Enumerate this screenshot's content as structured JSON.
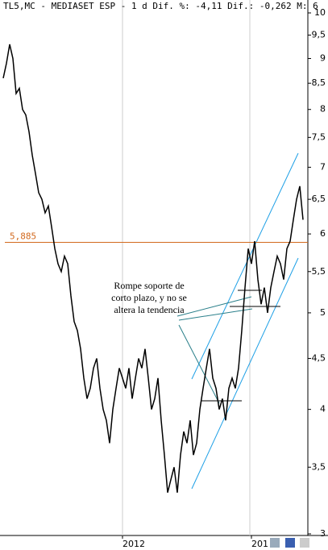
{
  "chart_data": {
    "type": "line",
    "title": "TL5,MC - MEDIASET ESP - 1 d Dif. %: -4,11 Dif.: -0,262 M: 6",
    "log_y": true,
    "ylim": [
      3,
      10
    ],
    "yticks": [
      3,
      {
        "value": 3.5,
        "label": "3,5"
      },
      4,
      {
        "value": 4.5,
        "label": "4,5"
      },
      5,
      {
        "value": 5.5,
        "label": "5,5"
      },
      6,
      {
        "value": 6.5,
        "label": "6,5"
      },
      7,
      {
        "value": 7.5,
        "label": "7,5"
      },
      8,
      {
        "value": 8.5,
        "label": "8,5"
      },
      9,
      {
        "value": 9.5,
        "label": "9,5"
      },
      10
    ],
    "hline": {
      "value": 5.885,
      "label": "5,885",
      "color": "#d2691e"
    },
    "annotation": [
      "Rompe soporte de",
      "corto plazo, y no se",
      "altera la tendencia"
    ],
    "categories": [
      null,
      null,
      null,
      null,
      null,
      null,
      null,
      null,
      null,
      null,
      null,
      null,
      null,
      null,
      null,
      null,
      null,
      null,
      null,
      null,
      null,
      null,
      null,
      null,
      null,
      null,
      null,
      null,
      null,
      null,
      null,
      null,
      null,
      null,
      null,
      null,
      null,
      "2012",
      null,
      null,
      null,
      null,
      null,
      null,
      null,
      null,
      null,
      null,
      null,
      null,
      null,
      null,
      null,
      null,
      null,
      null,
      null,
      null,
      null,
      null,
      null,
      null,
      null,
      null,
      null,
      null,
      null,
      null,
      null,
      null,
      null,
      null,
      null,
      null,
      null,
      null,
      null,
      "201",
      null,
      null,
      null,
      null,
      null,
      null,
      null,
      null,
      null,
      null,
      null,
      null,
      null,
      null,
      null,
      null
    ],
    "series": [
      {
        "color": "#000000",
        "values": [
          8.6,
          8.9,
          9.3,
          9.0,
          8.3,
          8.4,
          8.0,
          7.9,
          7.6,
          7.2,
          6.9,
          6.6,
          6.5,
          6.3,
          6.4,
          6.1,
          5.8,
          5.6,
          5.5,
          5.7,
          5.6,
          5.2,
          4.9,
          4.8,
          4.6,
          4.3,
          4.1,
          4.2,
          4.4,
          4.5,
          4.2,
          4.0,
          3.9,
          3.7,
          4.0,
          4.2,
          4.4,
          4.3,
          4.2,
          4.4,
          4.1,
          4.3,
          4.5,
          4.4,
          4.6,
          4.3,
          4.0,
          4.1,
          4.3,
          3.9,
          3.6,
          3.3,
          3.4,
          3.5,
          3.3,
          3.6,
          3.8,
          3.7,
          3.9,
          3.6,
          3.7,
          4.0,
          4.2,
          4.4,
          4.6,
          4.3,
          4.2,
          4.0,
          4.1,
          3.9,
          4.2,
          4.3,
          4.2,
          4.4,
          4.8,
          5.3,
          5.8,
          5.6,
          5.9,
          5.4,
          5.1,
          5.3,
          5.0,
          5.3,
          5.5,
          5.7,
          5.6,
          5.4,
          5.8,
          5.9,
          6.2,
          6.5,
          6.7,
          6.2
        ]
      }
    ]
  }
}
